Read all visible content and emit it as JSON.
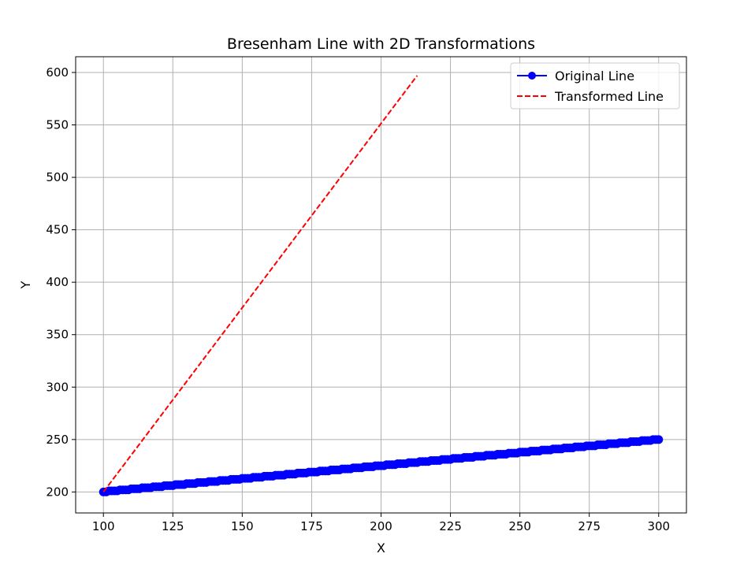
{
  "chart_data": {
    "type": "line",
    "title": "Bresenham Line with 2D Transformations",
    "xlabel": "X",
    "ylabel": "Y",
    "xlim": [
      90,
      310
    ],
    "ylim": [
      180,
      615
    ],
    "xticks": [
      100,
      125,
      150,
      175,
      200,
      225,
      250,
      275,
      300
    ],
    "yticks": [
      200,
      250,
      300,
      350,
      400,
      450,
      500,
      550,
      600
    ],
    "grid": true,
    "legend_position": "top-right",
    "series": [
      {
        "name": "Original Line",
        "style": "solid line with circle markers",
        "color": "#0000ff",
        "start": [
          100,
          200
        ],
        "end": [
          300,
          250
        ]
      },
      {
        "name": "Transformed Line",
        "style": "dashed",
        "color": "#ff0000",
        "start": [
          100,
          200
        ],
        "end": [
          213,
          597
        ]
      }
    ]
  }
}
